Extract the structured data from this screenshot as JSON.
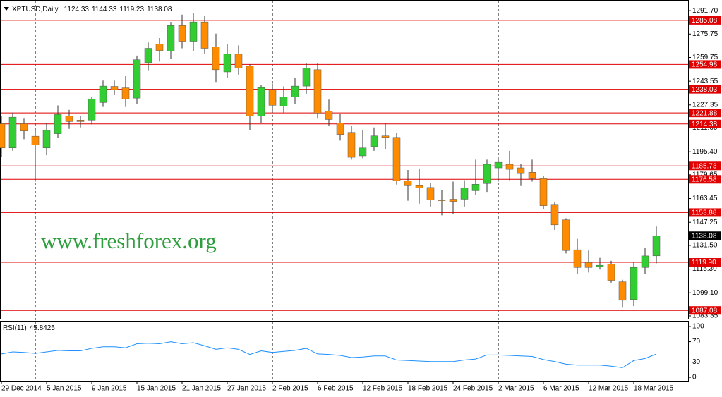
{
  "chart_data": {
    "type": "candlestick",
    "title": "XPTUSD,Daily",
    "watermark": "www.freshforex.org",
    "categories": [
      "29 Dec 2014",
      null,
      null,
      null,
      "5 Jan 2015",
      null,
      null,
      null,
      "9 Jan 2015",
      null,
      null,
      null,
      "15 Jan 2015",
      null,
      null,
      null,
      "21 Jan 2015",
      null,
      null,
      null,
      "27 Jan 2015",
      null,
      null,
      null,
      "2 Feb 2015",
      null,
      null,
      null,
      "6 Feb 2015",
      null,
      null,
      null,
      "12 Feb 2015",
      null,
      null,
      null,
      "18 Feb 2015",
      null,
      null,
      null,
      "24 Feb 2015",
      null,
      null,
      null,
      "2 Mar 2015",
      null,
      null,
      null,
      "6 Mar 2015",
      null,
      null,
      null,
      "12 Mar 2015",
      null,
      null,
      null,
      "18 Mar 2015",
      null,
      null
    ],
    "open": [
      1214.5,
      1198,
      1214.5,
      1206,
      1198,
      1207.7,
      1219.8,
      1217,
      1217,
      1229,
      1240,
      1239,
      1232,
      1256.2,
      1268.9,
      1264,
      1281.5,
      1270.8,
      1284,
      1267,
      1249.9,
      1262,
      1253.8,
      1219.8,
      1237.8,
      1226.6,
      1232.9,
      1240.2,
      1251.4,
      1223.2,
      1215,
      1208.6,
      1192.6,
      1198.9,
      1206.2,
      1205.2,
      1175.6,
      1172.3,
      1171,
      1162.6,
      1163,
      1163,
      1168.8,
      1173.7,
      1184.4,
      1186.8,
      1184.4,
      1181.4,
      1177,
      1159,
      1148.9,
      1128.5,
      1119.8,
      1117,
      1118.8,
      1106.6,
      1094.5,
      1116.4,
      1124.33
    ],
    "high": [
      1220,
      1222,
      1218,
      1210,
      1215,
      1227,
      1224,
      1220,
      1233,
      1244,
      1244,
      1247,
      1261,
      1270,
      1273,
      1284,
      1289,
      1290,
      1288,
      1276,
      1269,
      1268,
      1255,
      1241,
      1242,
      1240,
      1246,
      1256,
      1256,
      1231,
      1221,
      1213,
      1210,
      1212,
      1215,
      1208,
      1183,
      1184,
      1174,
      1169,
      1175,
      1176,
      1190,
      1190,
      1192,
      1196,
      1187,
      1190,
      1179,
      1161,
      1150,
      1136,
      1128,
      1123,
      1121,
      1108,
      1120,
      1130,
      1144.33
    ],
    "low": [
      1192,
      1196,
      1204,
      1175,
      1193,
      1205,
      1211,
      1212,
      1214,
      1226,
      1234,
      1226,
      1228,
      1251,
      1257,
      1259,
      1266,
      1264,
      1262,
      1243,
      1246,
      1248,
      1210,
      1215,
      1222,
      1222,
      1228,
      1235,
      1218,
      1213,
      1203,
      1190,
      1191,
      1196,
      1197,
      1173,
      1162,
      1160,
      1158,
      1152,
      1153,
      1158,
      1166,
      1168,
      1175,
      1176,
      1172,
      1175,
      1156,
      1142,
      1126,
      1112,
      1113,
      1115,
      1106,
      1089,
      1090,
      1112,
      1119.23
    ],
    "close": [
      1198,
      1219,
      1209.6,
      1200,
      1210,
      1220.8,
      1216,
      1216,
      1231.5,
      1240.2,
      1237.8,
      1231.5,
      1258.2,
      1266,
      1264.5,
      1281.5,
      1270.8,
      1284,
      1266,
      1251.4,
      1262,
      1252.4,
      1219.8,
      1239.2,
      1227.1,
      1232.9,
      1240.2,
      1252.4,
      1221.8,
      1217.4,
      1207.2,
      1191.6,
      1198,
      1206.2,
      1205.2,
      1175.6,
      1172.2,
      1170.6,
      1162.5,
      1162,
      1161.5,
      1170.6,
      1173.2,
      1186.8,
      1188.2,
      1183.4,
      1180.5,
      1177,
      1158.6,
      1145.5,
      1128,
      1116.4,
      1116.4,
      1117.9,
      1107.6,
      1094,
      1116.4,
      1124.3,
      1138.08
    ],
    "bull_color": "#32cd32",
    "bear_color": "#ff8c00",
    "level_color": "#e00000",
    "levels": [
      1285.08,
      1254.98,
      1238.03,
      1221.88,
      1214.38,
      1185.73,
      1176.58,
      1153.88,
      {
        "value": 1119.9,
        "label": "1119.90"
      },
      1087.08
    ],
    "ylim": [
      1081.4,
      1298.5
    ],
    "yticks": [
      {
        "value": 1291.7,
        "label": "1291.70"
      },
      1275.75,
      1259.75,
      1243.55,
      1227.35,
      {
        "value": 1211.6,
        "label": "1211.60"
      },
      {
        "value": 1195.4,
        "label": "1195.40"
      },
      1179.65,
      1163.45,
      1147.25,
      {
        "value": 1131.5,
        "label": "1131.50"
      },
      {
        "value": 1115.3,
        "label": "1115.30"
      },
      {
        "value": 1099.1,
        "label": "1099.10"
      },
      1083.35
    ],
    "rsi": {
      "name": "RSI(11)",
      "color": "#1e90ff",
      "values": [
        46,
        50,
        49,
        47,
        50,
        53,
        52,
        52,
        57,
        60,
        60,
        58,
        66,
        67,
        66,
        70,
        66,
        68,
        62,
        55,
        58,
        55,
        45,
        52,
        49,
        51,
        53,
        57,
        46,
        45,
        43,
        39,
        40,
        42,
        42,
        34,
        33,
        32,
        31,
        31,
        31,
        34,
        36,
        44,
        44,
        43,
        42,
        41,
        35,
        31,
        26,
        24,
        24,
        24,
        22,
        19,
        33,
        37,
        45.8425
      ],
      "ylim": [
        -8.2,
        109.6
      ],
      "yticks": [
        100,
        70,
        30,
        0
      ]
    }
  }
}
